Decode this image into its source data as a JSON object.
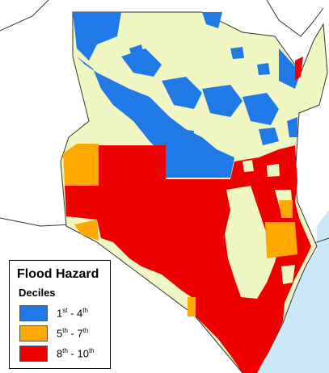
{
  "legend": {
    "title": "Flood Hazard",
    "subtitle": "Deciles",
    "items": [
      {
        "color": "#1f7ae8",
        "from": "1",
        "from_sup": "st",
        "sep": " - ",
        "to": "4",
        "to_sup": "th"
      },
      {
        "color": "#ffa800",
        "from": "5",
        "from_sup": "th",
        "sep": " - ",
        "to": "7",
        "to_sup": "th"
      },
      {
        "color": "#ee0000",
        "from": "8",
        "from_sup": "th",
        "sep": " - ",
        "to": "10",
        "to_sup": "th"
      }
    ]
  },
  "colors": {
    "low": "#1f7ae8",
    "mid": "#ffa800",
    "high": "#ee0000",
    "none": "#f1f7c2",
    "ocean": "#cbe8f7",
    "border": "#333333"
  }
}
